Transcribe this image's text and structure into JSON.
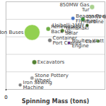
{
  "chart_data": {
    "type": "scatter",
    "x_label": "Spinning Mass (tons)",
    "labels": [
      "don Buses",
      "Renewables Back Up",
      "Beacon Power Flywheel",
      "45MW Gas Turbine",
      "850MW Gas Tur",
      "Usibelli 1MW",
      "Yamanaki Solar",
      "Container Port Cranes",
      "Boulton Watt Engine",
      "Cen",
      "Excavators",
      "Stone Pottery Wheel",
      "Iron Sewing Machine"
    ],
    "x": [
      79,
      128,
      203,
      233,
      261,
      246,
      171,
      133,
      191,
      279,
      86,
      79,
      43
    ],
    "values": [
      65,
      69,
      81,
      80,
      94,
      73,
      67,
      56,
      53,
      55,
      31,
      13,
      5
    ],
    "sizes": [
      100,
      8,
      6,
      8,
      10,
      5,
      6,
      7,
      4,
      5,
      9,
      6,
      5
    ],
    "colors": [
      "#92d050",
      "#70ad47",
      "#4472c4",
      "#3f8f3f",
      "#a9d18e",
      "#375623",
      "#548235",
      "#7f7f7f",
      "#7030a0",
      "#70ad47",
      "#548235",
      "#a5a5a5",
      "#7f7f7f"
    ],
    "xlim": [
      0,
      300
    ],
    "xticks": [
      0
    ],
    "ylim": [
      0,
      100
    ],
    "yticks": [
      0,
      20,
      40,
      60,
      80,
      100
    ],
    "grid": true,
    "tick_labels": "x"
  }
}
